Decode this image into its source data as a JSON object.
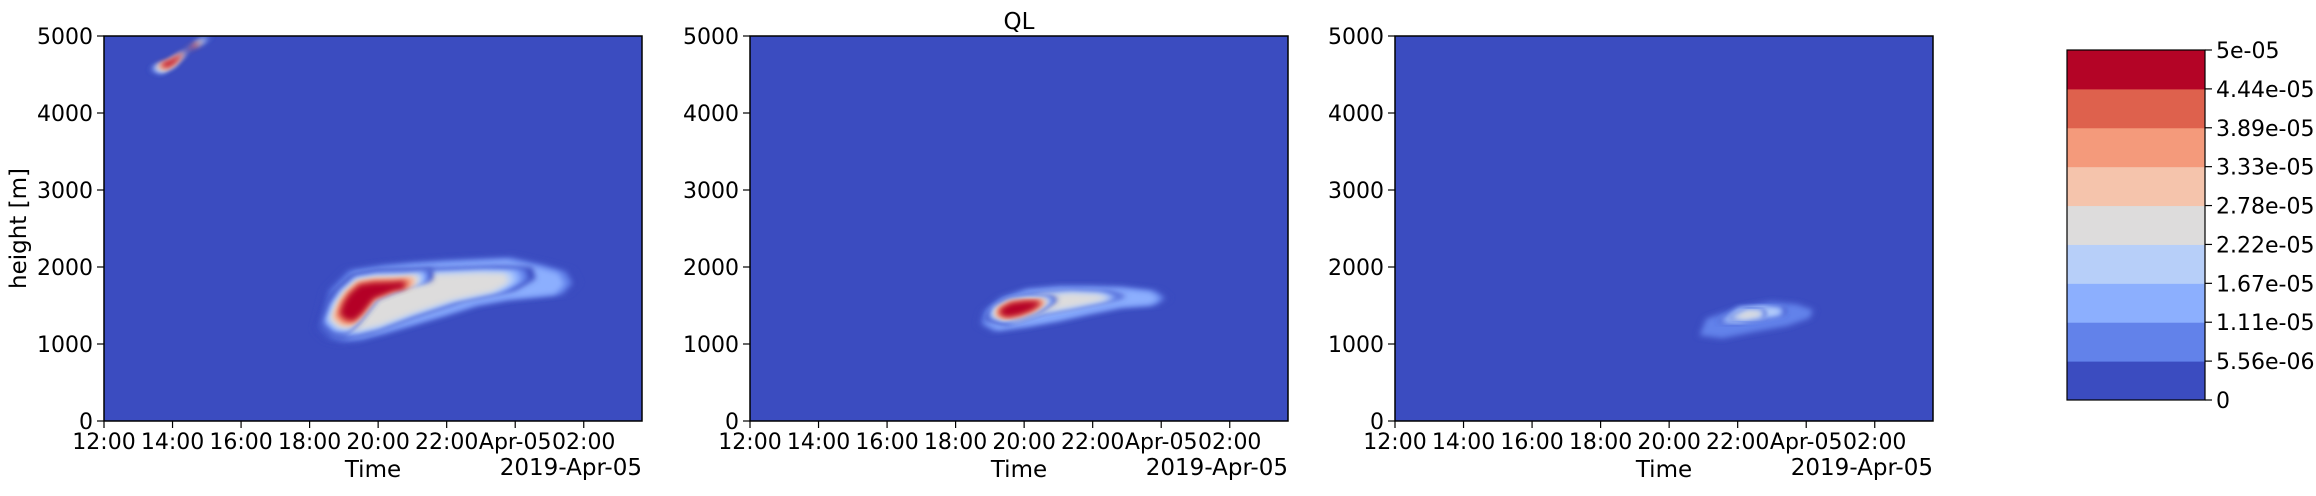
{
  "figure_title": "QL",
  "colorbar": {
    "levels": [
      "0",
      "5.56e-06",
      "1.11e-05",
      "1.67e-05",
      "2.22e-05",
      "2.78e-05",
      "3.33e-05",
      "3.89e-05",
      "4.44e-05",
      "5e-05"
    ],
    "colors": [
      "#3b4cc0",
      "#6282ea",
      "#8caffe",
      "#b7cff9",
      "#dddcdc",
      "#f5c4ac",
      "#f49a7b",
      "#de614d",
      "#b40426"
    ]
  },
  "chart_data": [
    {
      "type": "contourf",
      "title": "",
      "xlabel": "Time",
      "xlabel2": "2019-Apr-05",
      "ylabel": "height [m]",
      "x_ticks": [
        "12:00",
        "14:00",
        "16:00",
        "18:00",
        "20:00",
        "22:00",
        "Apr-05",
        "02:00"
      ],
      "y_ticks": [
        "0",
        "1000",
        "2000",
        "3000",
        "4000",
        "5000"
      ],
      "xlim_hours": [
        12,
        27.7
      ],
      "ylim": [
        0,
        5000
      ],
      "features": [
        {
          "level": 3,
          "t": [
            18.1,
            18.4,
            18.8,
            19.3,
            20.0,
            21.0,
            22.0,
            23.0,
            24.0,
            25.0,
            25.6,
            25.9,
            25.7,
            25.0,
            24.0,
            23.0,
            22.0,
            21.0,
            20.0,
            19.0,
            18.4,
            18.1
          ],
          "h": [
            1180,
            1050,
            1000,
            1020,
            1100,
            1230,
            1360,
            1500,
            1580,
            1620,
            1650,
            1800,
            1960,
            2050,
            2150,
            2130,
            2110,
            2080,
            2040,
            1970,
            1700,
            1180
          ]
        },
        {
          "level": 5,
          "t": [
            18.2,
            18.5,
            19.0,
            19.8,
            21.0,
            22.5,
            24.0,
            24.6,
            24.5,
            23.5,
            22.3,
            21.0,
            20.0,
            19.2,
            18.6,
            18.2
          ],
          "h": [
            1200,
            1070,
            1060,
            1140,
            1340,
            1560,
            1700,
            1850,
            2000,
            2010,
            1990,
            1970,
            1960,
            1890,
            1650,
            1200
          ]
        },
        {
          "level": 9,
          "t": [
            18.3,
            18.6,
            19.0,
            19.4,
            20.0,
            21.0,
            21.6,
            21.6,
            21.0,
            20.0,
            19.3,
            18.8,
            18.5,
            18.3
          ],
          "h": [
            1250,
            1120,
            1100,
            1260,
            1600,
            1780,
            1830,
            1980,
            1960,
            1950,
            1900,
            1700,
            1500,
            1250
          ]
        },
        {
          "level": 9,
          "t": [
            13.3,
            13.6,
            14.0,
            14.6,
            15.2,
            15.0,
            14.4,
            13.8,
            13.3
          ],
          "h": [
            4560,
            4500,
            4600,
            4880,
            5000,
            5000,
            4800,
            4640,
            4560
          ]
        }
      ]
    },
    {
      "type": "contourf",
      "title": "QL",
      "xlabel": "Time",
      "xlabel2": "2019-Apr-05",
      "ylabel": "",
      "x_ticks": [
        "12:00",
        "14:00",
        "16:00",
        "18:00",
        "20:00",
        "22:00",
        "Apr-05",
        "02:00"
      ],
      "y_ticks": [
        "0",
        "1000",
        "2000",
        "3000",
        "4000",
        "5000"
      ],
      "xlim_hours": [
        12,
        27.7
      ],
      "ylim": [
        0,
        5000
      ],
      "features": [
        {
          "level": 3,
          "t": [
            18.6,
            19.0,
            20.0,
            21.0,
            22.0,
            23.0,
            24.0,
            24.3,
            24.0,
            23.0,
            22.0,
            21.0,
            20.0,
            19.2,
            18.7,
            18.6
          ],
          "h": [
            1250,
            1150,
            1210,
            1290,
            1390,
            1480,
            1510,
            1600,
            1700,
            1750,
            1760,
            1760,
            1720,
            1600,
            1420,
            1250
          ]
        },
        {
          "level": 5,
          "t": [
            18.8,
            19.5,
            20.5,
            21.5,
            22.5,
            23.0,
            22.5,
            21.5,
            20.5,
            19.5,
            18.8
          ],
          "h": [
            1320,
            1250,
            1390,
            1470,
            1560,
            1620,
            1680,
            1700,
            1670,
            1580,
            1320
          ]
        },
        {
          "level": 9,
          "t": [
            18.9,
            19.3,
            19.9,
            20.5,
            21.0,
            20.8,
            20.2,
            19.5,
            19.0,
            18.9
          ],
          "h": [
            1340,
            1280,
            1330,
            1430,
            1580,
            1620,
            1620,
            1580,
            1460,
            1340
          ]
        }
      ]
    },
    {
      "type": "contourf",
      "title": "",
      "xlabel": "Time",
      "xlabel2": "2019-Apr-05",
      "ylabel": "",
      "x_ticks": [
        "12:00",
        "14:00",
        "16:00",
        "18:00",
        "20:00",
        "22:00",
        "Apr-05",
        "02:00"
      ],
      "y_ticks": [
        "0",
        "1000",
        "2000",
        "3000",
        "4000",
        "5000"
      ],
      "xlim_hours": [
        12,
        27.7
      ],
      "ylim": [
        0,
        5000
      ],
      "features": [
        {
          "level": 2,
          "t": [
            20.8,
            21.5,
            22.5,
            23.5,
            24.2,
            24.3,
            23.8,
            23.0,
            22.0,
            21.0,
            20.8
          ],
          "h": [
            1100,
            1060,
            1150,
            1230,
            1340,
            1450,
            1530,
            1560,
            1480,
            1330,
            1100
          ]
        },
        {
          "level": 4,
          "t": [
            21.4,
            22.0,
            22.8,
            23.4,
            23.4,
            22.8,
            22.0,
            21.4
          ],
          "h": [
            1280,
            1270,
            1340,
            1390,
            1470,
            1500,
            1470,
            1280
          ]
        },
        {
          "level": 5,
          "t": [
            21.7,
            22.2,
            22.8,
            22.8,
            22.3,
            21.7
          ],
          "h": [
            1330,
            1310,
            1360,
            1440,
            1450,
            1330
          ]
        }
      ]
    }
  ]
}
